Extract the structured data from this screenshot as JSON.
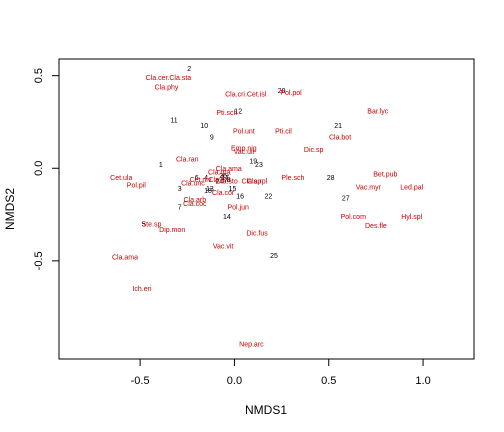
{
  "chart_data": {
    "type": "scatter",
    "title": "",
    "xlabel": "NMDS1",
    "ylabel": "NMDS2",
    "xlim": [
      -0.93,
      1.27
    ],
    "ylim": [
      -1.03,
      0.59
    ],
    "x_ticks": [
      -0.5,
      0.0,
      0.5,
      1.0
    ],
    "y_ticks": [
      -0.5,
      0.0,
      0.5
    ],
    "x_tick_labels": [
      "-0.5",
      "0.0",
      "0.5",
      "1.0"
    ],
    "y_tick_labels": [
      "-0.5",
      "0.0",
      "0.5"
    ],
    "grid": false,
    "legend": "none",
    "colors": {
      "sites": "#000000",
      "species": "#cc0000",
      "axis": "#000000"
    },
    "series": [
      {
        "kind": "sites",
        "points": [
          {
            "label": "1",
            "x": -0.39,
            "y": 0.02
          },
          {
            "label": "2",
            "x": -0.24,
            "y": 0.54
          },
          {
            "label": "3",
            "x": -0.29,
            "y": -0.11
          },
          {
            "label": "4",
            "x": -0.15,
            "y": -0.05
          },
          {
            "label": "5",
            "x": -0.48,
            "y": -0.3
          },
          {
            "label": "6",
            "x": -0.2,
            "y": -0.05
          },
          {
            "label": "7",
            "x": -0.29,
            "y": -0.21
          },
          {
            "label": "8",
            "x": -0.03,
            "y": -0.06
          },
          {
            "label": "9",
            "x": -0.12,
            "y": 0.17
          },
          {
            "label": "10",
            "x": -0.16,
            "y": 0.23
          },
          {
            "label": "11",
            "x": -0.32,
            "y": 0.26
          },
          {
            "label": "12",
            "x": 0.02,
            "y": 0.31
          },
          {
            "label": "13",
            "x": -0.13,
            "y": -0.11
          },
          {
            "label": "14",
            "x": -0.04,
            "y": -0.26
          },
          {
            "label": "15",
            "x": -0.01,
            "y": -0.11
          },
          {
            "label": "16",
            "x": 0.03,
            "y": -0.15
          },
          {
            "label": "17",
            "x": -0.05,
            "y": -0.05
          },
          {
            "label": "18",
            "x": -0.14,
            "y": -0.12
          },
          {
            "label": "19",
            "x": 0.1,
            "y": 0.04
          },
          {
            "label": "20",
            "x": 0.25,
            "y": 0.42
          },
          {
            "label": "21",
            "x": 0.55,
            "y": 0.23
          },
          {
            "label": "22",
            "x": 0.18,
            "y": -0.15
          },
          {
            "label": "23",
            "x": 0.13,
            "y": 0.02
          },
          {
            "label": "24",
            "x": -0.08,
            "y": -0.07
          },
          {
            "label": "25",
            "x": 0.21,
            "y": -0.47
          },
          {
            "label": "26",
            "x": -0.06,
            "y": -0.04
          },
          {
            "label": "27",
            "x": 0.59,
            "y": -0.16
          },
          {
            "label": "28",
            "x": 0.51,
            "y": -0.05
          }
        ]
      },
      {
        "kind": "species",
        "points": [
          {
            "label": "Cla.cer.Cla.sta",
            "x": -0.35,
            "y": 0.49
          },
          {
            "label": "Cla.phy",
            "x": -0.36,
            "y": 0.44
          },
          {
            "label": "Cla.cri.Cet.isl",
            "x": 0.06,
            "y": 0.4
          },
          {
            "label": "Pti.sch",
            "x": -0.04,
            "y": 0.3
          },
          {
            "label": "Pol.pol",
            "x": 0.3,
            "y": 0.41
          },
          {
            "label": "Bar.lyc",
            "x": 0.76,
            "y": 0.31
          },
          {
            "label": "Pti.cil",
            "x": 0.26,
            "y": 0.2
          },
          {
            "label": "Cla.bot",
            "x": 0.56,
            "y": 0.17
          },
          {
            "label": "Pol.unt",
            "x": 0.05,
            "y": 0.2
          },
          {
            "label": "Dic.sp",
            "x": 0.42,
            "y": 0.1
          },
          {
            "label": "Emp.nig",
            "x": 0.05,
            "y": 0.11
          },
          {
            "label": "Vac.uli",
            "x": 0.05,
            "y": 0.09
          },
          {
            "label": "Cla.ran",
            "x": -0.25,
            "y": 0.05
          },
          {
            "label": "Cla.ama",
            "x": -0.03,
            "y": 0.0
          },
          {
            "label": "Cla.gra",
            "x": -0.08,
            "y": -0.02
          },
          {
            "label": "Cet.niv",
            "x": -0.18,
            "y": -0.06
          },
          {
            "label": "Cla.fim",
            "x": -0.08,
            "y": -0.06
          },
          {
            "label": "Cla.sto",
            "x": -0.04,
            "y": -0.07
          },
          {
            "label": "Cla.sp",
            "x": 0.09,
            "y": -0.07
          },
          {
            "label": "Cla.rpl",
            "x": 0.12,
            "y": -0.07
          },
          {
            "label": "Cla.unc",
            "x": -0.22,
            "y": -0.08
          },
          {
            "label": "Cet.ula",
            "x": -0.6,
            "y": -0.05
          },
          {
            "label": "Pol.pil",
            "x": -0.52,
            "y": -0.09
          },
          {
            "label": "Ple.sch",
            "x": 0.31,
            "y": -0.05
          },
          {
            "label": "Bet.pub",
            "x": 0.8,
            "y": -0.03
          },
          {
            "label": "Vac.myr",
            "x": 0.71,
            "y": -0.1
          },
          {
            "label": "Led.pal",
            "x": 0.94,
            "y": -0.1
          },
          {
            "label": "Cla.cor",
            "x": -0.06,
            "y": -0.13
          },
          {
            "label": "Cla.arb",
            "x": -0.21,
            "y": -0.17
          },
          {
            "label": "Cla.coc",
            "x": -0.21,
            "y": -0.19
          },
          {
            "label": "Pol.jun",
            "x": 0.02,
            "y": -0.21
          },
          {
            "label": "Pol.com",
            "x": 0.63,
            "y": -0.26
          },
          {
            "label": "Hyl.spl",
            "x": 0.94,
            "y": -0.26
          },
          {
            "label": "Des.fle",
            "x": 0.75,
            "y": -0.31
          },
          {
            "label": "Ste.sp",
            "x": -0.44,
            "y": -0.3
          },
          {
            "label": "Dip.mon",
            "x": -0.33,
            "y": -0.33
          },
          {
            "label": "Dic.fus",
            "x": 0.12,
            "y": -0.35
          },
          {
            "label": "Vac.vit",
            "x": -0.06,
            "y": -0.42
          },
          {
            "label": "Cla.ama",
            "x": -0.58,
            "y": -0.48
          },
          {
            "label": "Ich.eri",
            "x": -0.49,
            "y": -0.65
          },
          {
            "label": "Nep.arc",
            "x": 0.09,
            "y": -0.95
          }
        ]
      }
    ]
  }
}
